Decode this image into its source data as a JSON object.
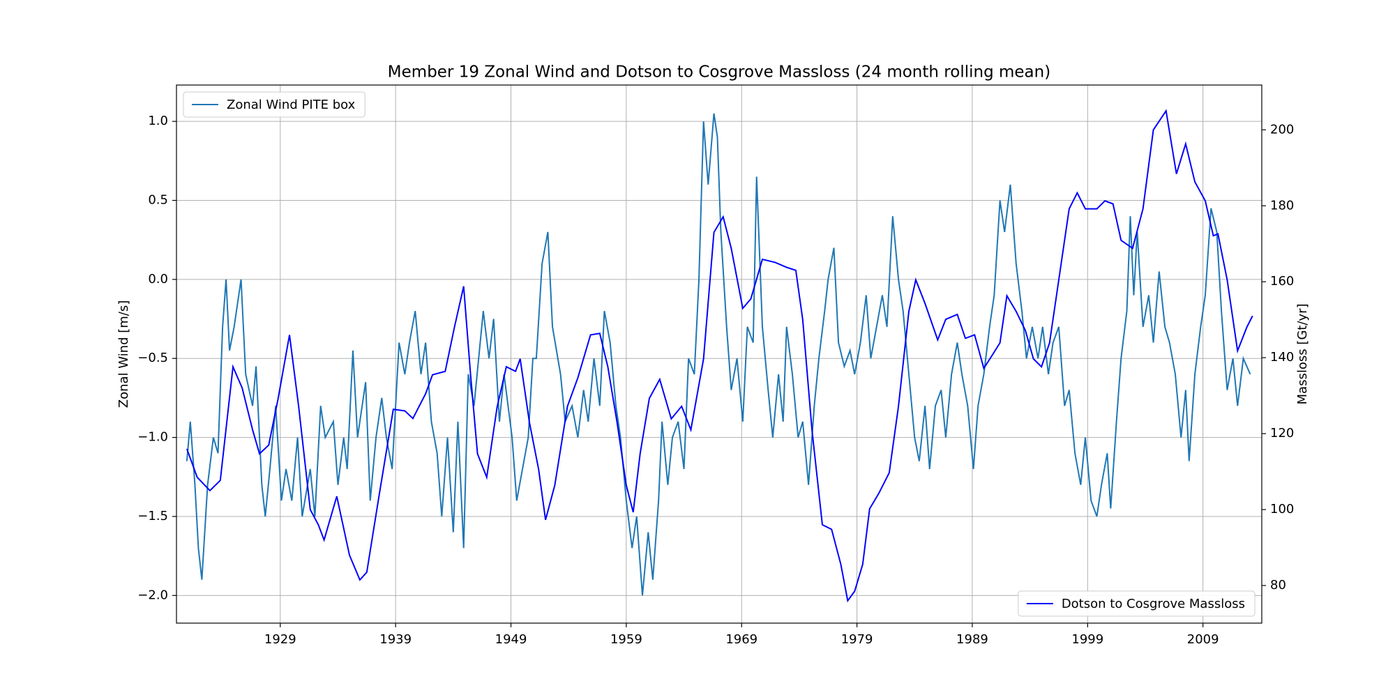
{
  "chart_data": {
    "type": "line",
    "title": "Member 19 Zonal Wind and Dotson to Cosgrove Massloss (24 month rolling mean)",
    "ylabel": "Zonal Wind [m/s]",
    "y2label": "Massloss [Gt/yr]",
    "xlim": [
      1920,
      2014.1
    ],
    "xticks": [
      1929,
      1939,
      1949,
      1959,
      1969,
      1979,
      1989,
      1999,
      2009
    ],
    "ylim": [
      -2.175,
      1.23
    ],
    "yticks": [
      {
        "value": -2.0,
        "label": "−2.0"
      },
      {
        "value": -1.5,
        "label": "−1.5"
      },
      {
        "value": -1.0,
        "label": "−1.0"
      },
      {
        "value": -0.5,
        "label": "−0.5"
      },
      {
        "value": 0.0,
        "label": "0.0"
      },
      0.5,
      {
        "value": 1.0,
        "label": "1.0"
      }
    ],
    "y2lim": [
      70.1,
      211.8
    ],
    "y2ticks": [
      80,
      100,
      120,
      140,
      160,
      180,
      200
    ],
    "grid": true,
    "series": [
      {
        "name": "Zonal Wind PITE box",
        "color": "#1f77b4",
        "axis": "y",
        "legend_loc": "upper left",
        "x": [
          1920.9,
          1921.2,
          1921.6,
          1921.9,
          1922.2,
          1922.7,
          1923.2,
          1923.6,
          1924.0,
          1924.3,
          1924.6,
          1925.0,
          1925.6,
          1926.0,
          1926.6,
          1926.9,
          1927.4,
          1927.7,
          1928.1,
          1928.6,
          1929.1,
          1929.5,
          1930.0,
          1930.5,
          1930.9,
          1931.6,
          1932.0,
          1932.5,
          1932.9,
          1933.6,
          1934.0,
          1934.5,
          1934.8,
          1935.3,
          1935.7,
          1936.4,
          1936.8,
          1937.3,
          1937.8,
          1938.2,
          1938.7,
          1939.3,
          1939.8,
          1940.2,
          1940.7,
          1941.2,
          1941.6,
          1942.1,
          1942.6,
          1943.0,
          1943.5,
          1944.0,
          1944.4,
          1944.9,
          1945.3,
          1945.8,
          1946.6,
          1947.1,
          1947.5,
          1948.0,
          1948.4,
          1949.1,
          1949.5,
          1950.0,
          1950.5,
          1950.9,
          1951.2,
          1951.7,
          1952.2,
          1952.6,
          1953.3,
          1953.7,
          1954.3,
          1954.8,
          1955.3,
          1955.7,
          1956.2,
          1956.7,
          1957.1,
          1957.6,
          1958.1,
          1958.5,
          1959.0,
          1959.5,
          1959.9,
          1960.4,
          1960.9,
          1961.3,
          1961.8,
          1962.1,
          1962.6,
          1963.0,
          1963.5,
          1964.0,
          1964.4,
          1964.9,
          1965.3,
          1965.7,
          1966.1,
          1966.6,
          1966.9,
          1967.2,
          1967.7,
          1968.1,
          1968.6,
          1969.1,
          1969.5,
          1970.0,
          1970.3,
          1970.8,
          1971.3,
          1971.7,
          1972.2,
          1972.6,
          1972.9,
          1973.4,
          1973.9,
          1974.3,
          1974.8,
          1975.3,
          1975.7,
          1976.2,
          1976.5,
          1977.0,
          1977.4,
          1977.9,
          1978.4,
          1978.8,
          1979.3,
          1979.8,
          1980.2,
          1980.7,
          1981.2,
          1981.6,
          1982.1,
          1982.6,
          1983.0,
          1983.5,
          1984.0,
          1984.4,
          1984.9,
          1985.3,
          1985.8,
          1986.3,
          1986.7,
          1987.2,
          1987.7,
          1988.1,
          1988.6,
          1989.1,
          1989.5,
          1990.0,
          1990.5,
          1990.9,
          1991.4,
          1991.8,
          1992.3,
          1992.8,
          1993.3,
          1993.7,
          1994.2,
          1994.7,
          1995.1,
          1995.6,
          1996.0,
          1996.5,
          1997.0,
          1997.4,
          1997.9,
          1998.4,
          1998.8,
          1999.3,
          1999.8,
          2000.2,
          2000.7,
          2001.0,
          2001.5,
          2001.9,
          2002.4,
          2002.7,
          2003.0,
          2003.3,
          2003.8,
          2004.3,
          2004.7,
          2005.2,
          2005.7,
          2006.1,
          2006.6,
          2007.1,
          2007.5,
          2007.8,
          2008.3,
          2008.8,
          2009.2,
          2009.7,
          2010.2,
          2010.6,
          2011.1,
          2011.6,
          2012.0,
          2012.5,
          2013.1
        ],
        "values": [
          -1.15,
          -0.9,
          -1.3,
          -1.7,
          -1.9,
          -1.3,
          -1.0,
          -1.1,
          -0.3,
          0.0,
          -0.45,
          -0.3,
          0.0,
          -0.6,
          -0.8,
          -0.55,
          -1.3,
          -1.5,
          -1.2,
          -0.8,
          -1.4,
          -1.2,
          -1.4,
          -1.0,
          -1.5,
          -1.2,
          -1.5,
          -0.8,
          -1.0,
          -0.9,
          -1.3,
          -1.0,
          -1.2,
          -0.45,
          -1.0,
          -0.65,
          -1.4,
          -1.0,
          -0.75,
          -1.0,
          -1.2,
          -0.4,
          -0.6,
          -0.4,
          -0.2,
          -0.6,
          -0.4,
          -0.9,
          -1.1,
          -1.5,
          -1.0,
          -1.6,
          -0.9,
          -1.7,
          -0.6,
          -0.8,
          -0.2,
          -0.5,
          -0.25,
          -0.9,
          -0.6,
          -1.0,
          -1.4,
          -1.2,
          -1.0,
          -0.5,
          -0.5,
          0.1,
          0.3,
          -0.3,
          -0.6,
          -0.9,
          -0.8,
          -1.0,
          -0.7,
          -0.9,
          -0.5,
          -0.8,
          -0.2,
          -0.4,
          -0.8,
          -1.0,
          -1.4,
          -1.7,
          -1.5,
          -2.0,
          -1.6,
          -1.9,
          -1.4,
          -0.9,
          -1.3,
          -1.0,
          -0.9,
          -1.2,
          -0.5,
          -0.6,
          0.0,
          1.0,
          0.6,
          1.05,
          0.9,
          0.3,
          -0.3,
          -0.7,
          -0.5,
          -0.9,
          -0.3,
          -0.4,
          0.65,
          -0.3,
          -0.7,
          -1.0,
          -0.6,
          -0.9,
          -0.3,
          -0.6,
          -1.0,
          -0.9,
          -1.3,
          -0.8,
          -0.5,
          -0.2,
          0.0,
          0.2,
          -0.4,
          -0.55,
          -0.45,
          -0.6,
          -0.4,
          -0.1,
          -0.5,
          -0.3,
          -0.1,
          -0.3,
          0.4,
          0.0,
          -0.2,
          -0.6,
          -1.0,
          -1.15,
          -0.8,
          -1.2,
          -0.8,
          -0.7,
          -1.0,
          -0.6,
          -0.4,
          -0.6,
          -0.8,
          -1.2,
          -0.8,
          -0.6,
          -0.3,
          -0.1,
          0.5,
          0.3,
          0.6,
          0.1,
          -0.2,
          -0.5,
          -0.3,
          -0.5,
          -0.3,
          -0.6,
          -0.4,
          -0.3,
          -0.8,
          -0.7,
          -1.1,
          -1.3,
          -1.0,
          -1.4,
          -1.5,
          -1.3,
          -1.1,
          -1.45,
          -0.9,
          -0.5,
          -0.2,
          0.4,
          -0.1,
          0.3,
          -0.3,
          -0.1,
          -0.4,
          0.05,
          -0.3,
          -0.4,
          -0.6,
          -1.0,
          -0.7,
          -1.15,
          -0.6,
          -0.3,
          -0.1,
          0.45,
          0.3,
          -0.2,
          -0.7,
          -0.5,
          -0.8,
          -0.5,
          -0.6
        ]
      },
      {
        "name": "Dotson to Cosgrove Massloss",
        "color": "#0000ff",
        "axis": "y2",
        "legend_loc": "lower right",
        "x": [
          1920.9,
          1921.8,
          1922.9,
          1923.8,
          1924.9,
          1925.7,
          1926.6,
          1927.2,
          1928.0,
          1928.8,
          1929.8,
          1930.6,
          1931.6,
          1932.3,
          1932.8,
          1933.9,
          1935.0,
          1935.9,
          1936.5,
          1937.6,
          1938.8,
          1939.8,
          1940.5,
          1941.6,
          1942.2,
          1943.3,
          1944.1,
          1944.9,
          1945.5,
          1946.1,
          1946.9,
          1947.8,
          1948.6,
          1949.4,
          1949.8,
          1950.6,
          1951.4,
          1952.0,
          1952.8,
          1953.9,
          1954.8,
          1955.9,
          1956.7,
          1957.4,
          1958.2,
          1959.0,
          1959.6,
          1960.2,
          1961.0,
          1961.9,
          1962.9,
          1963.8,
          1964.6,
          1965.7,
          1966.6,
          1967.4,
          1968.1,
          1969.1,
          1969.8,
          1970.8,
          1971.9,
          1972.9,
          1973.7,
          1974.3,
          1975.1,
          1976.0,
          1976.8,
          1977.6,
          1978.2,
          1978.8,
          1979.5,
          1980.1,
          1980.9,
          1981.8,
          1982.6,
          1983.5,
          1984.1,
          1984.9,
          1986.0,
          1986.7,
          1987.7,
          1988.4,
          1989.2,
          1990.0,
          1990.8,
          1991.4,
          1992.0,
          1992.8,
          1993.6,
          1994.3,
          1995.0,
          1995.7,
          1996.5,
          1997.4,
          1998.1,
          1998.8,
          1999.8,
          2000.5,
          2001.2,
          2001.9,
          2002.9,
          2003.8,
          2004.7,
          2005.8,
          2006.7,
          2007.5,
          2008.3,
          2009.2,
          2009.9,
          2010.3,
          2011.1,
          2012.0,
          2012.8,
          2013.3
        ],
        "values": [
          116,
          108.5,
          105,
          107.7,
          137.6,
          132,
          121,
          114.7,
          117,
          129,
          146,
          127,
          100,
          96,
          92,
          103.5,
          88,
          81.5,
          83.5,
          104.3,
          126.4,
          126,
          124,
          130.5,
          135.5,
          136.4,
          148,
          158.8,
          135.5,
          114.7,
          108.5,
          127,
          137.6,
          136.4,
          139.7,
          123,
          110.6,
          97.3,
          106.4,
          127.2,
          134.7,
          146,
          146.4,
          137.6,
          123,
          106.4,
          99.3,
          114.7,
          129.3,
          134.3,
          123.9,
          127.2,
          121,
          139.7,
          173,
          177.1,
          168.8,
          153,
          155.5,
          165.9,
          165.1,
          163.8,
          163,
          150,
          121,
          96,
          94.8,
          85.6,
          76,
          78.5,
          85.6,
          100.2,
          104.3,
          109.7,
          127.2,
          152.2,
          160.5,
          154.3,
          144.7,
          150.1,
          151.4,
          145.1,
          146,
          137.2,
          141,
          143.9,
          156.3,
          152.2,
          147.2,
          139.7,
          137.6,
          143.9,
          160.5,
          179.2,
          183.4,
          179.2,
          179.2,
          181.3,
          180.5,
          170.9,
          168.8,
          179.2,
          200,
          205,
          188.4,
          196.3,
          186.3,
          181.3,
          172.1,
          172.6,
          160.5,
          141.8,
          148,
          151
        ]
      }
    ]
  }
}
